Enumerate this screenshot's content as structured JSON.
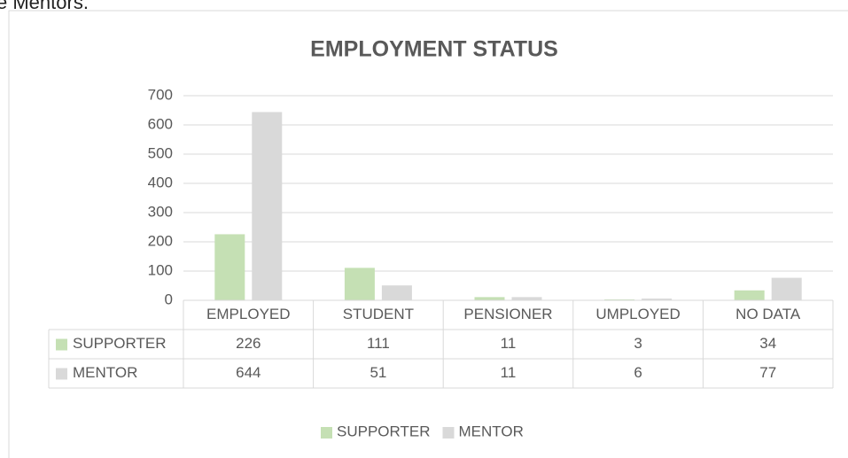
{
  "caption": "e Mentors.",
  "chart_data": {
    "type": "bar",
    "title": "EMPLOYMENT STATUS",
    "categories": [
      "EMPLOYED",
      "STUDENT",
      "PENSIONER",
      "UMPLOYED",
      "NO DATA"
    ],
    "series": [
      {
        "name": "SUPPORTER",
        "color": "#c5e0b4",
        "values": [
          226,
          111,
          11,
          3,
          34
        ]
      },
      {
        "name": "MENTOR",
        "color": "#d9d9d9",
        "values": [
          644,
          51,
          11,
          6,
          77
        ]
      }
    ],
    "ylim": [
      0,
      700
    ],
    "yticks": [
      0,
      100,
      200,
      300,
      400,
      500,
      600,
      700
    ],
    "grid": true,
    "legend": "bottom",
    "data_table": true
  }
}
